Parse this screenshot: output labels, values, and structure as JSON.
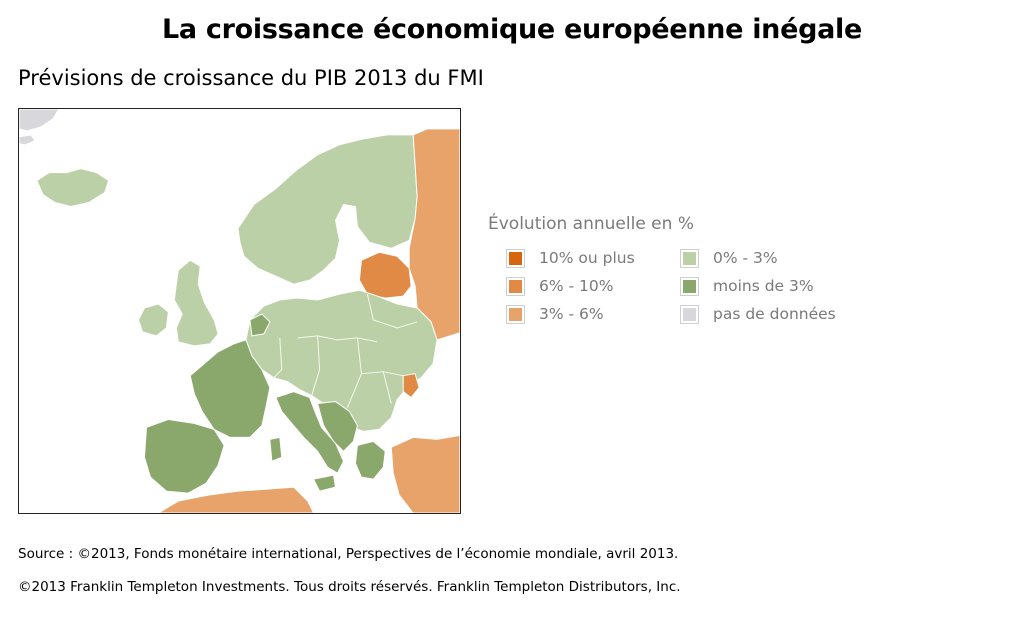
{
  "title": "La croissance économique européenne inégale",
  "subtitle": "Prévisions de croissance du PIB 2013 du FMI",
  "legend": {
    "title": "Évolution annuelle en %",
    "items": [
      {
        "label": "10% ou plus",
        "color": "#d7650f"
      },
      {
        "label": "0% - 3%",
        "color": "#bbd0a6"
      },
      {
        "label": "6% - 10%",
        "color": "#e08a45"
      },
      {
        "label": "moins de 3%",
        "color": "#8aa86c"
      },
      {
        "label": "3% - 6%",
        "color": "#e8a36a"
      },
      {
        "label": "pas de données",
        "color": "#d8d8dc"
      }
    ]
  },
  "map": {
    "colors": {
      "high": "#e8a36a",
      "mid": "#e08a45",
      "low": "#bbd0a6",
      "negative": "#8aa86c",
      "nodata": "#d8d8dc",
      "border": "#ffffff"
    }
  },
  "footer": {
    "source": "Source : ©2013, Fonds monétaire international, Perspectives de l’économie mondiale, avril 2013.",
    "copyright": "©2013 Franklin Templeton Investments. Tous droits réservés. Franklin Templeton Distributors, Inc."
  }
}
